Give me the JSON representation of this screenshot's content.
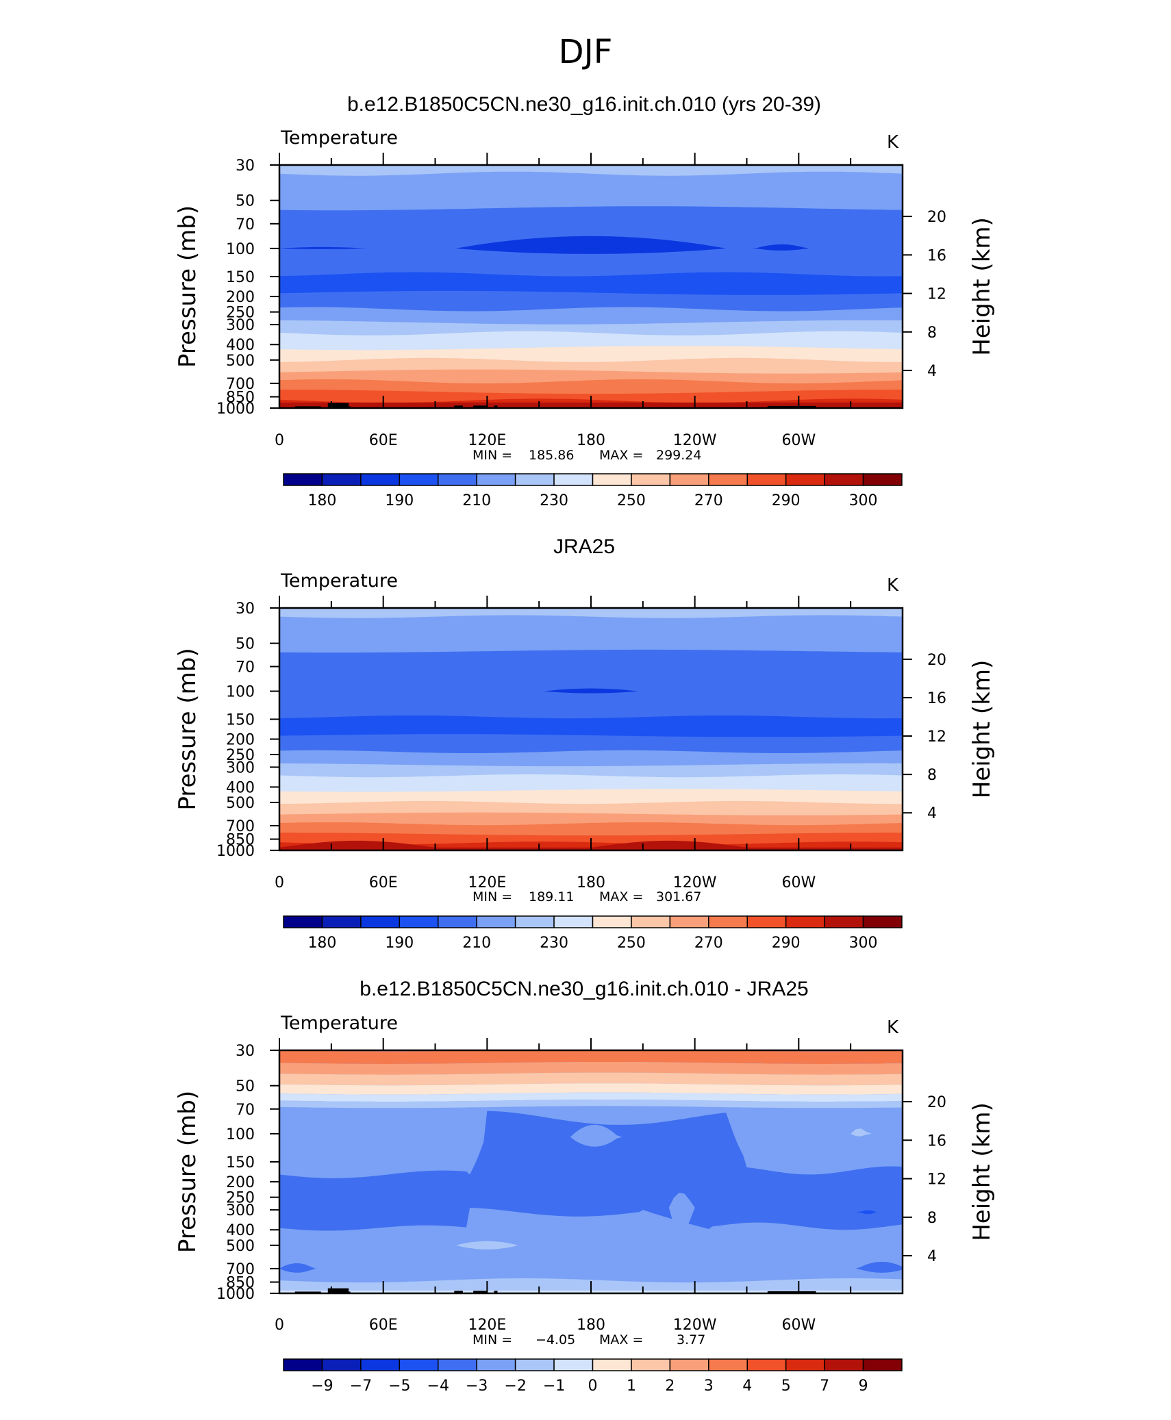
{
  "page_title": "DJF",
  "chart_data": [
    {
      "type": "heatmap",
      "title": "b.e12.B1850C5CN.ne30_g16.init.ch.010 (yrs 20-39)",
      "variable": "Temperature",
      "units": "K",
      "ylabel": "Pressure (mb)",
      "y2label": "Height (km)",
      "x_ticks": [
        "0",
        "60E",
        "120E",
        "180",
        "120W",
        "60W"
      ],
      "y_ticks": [
        "30",
        "50",
        "70",
        "100",
        "150",
        "200",
        "250",
        "300",
        "400",
        "500",
        "700",
        "850",
        "1000"
      ],
      "y2_ticks": [
        "4",
        "8",
        "12",
        "16",
        "20"
      ],
      "min_label": "MIN = ",
      "min": "185.86",
      "max_label": "MAX = ",
      "max": "299.24",
      "colorbar_labels": [
        "180",
        "190",
        "210",
        "230",
        "250",
        "270",
        "290",
        "300"
      ],
      "colors": [
        "#00008b",
        "#0a1fb8",
        "#0b37e0",
        "#1c52f2",
        "#3f6ff0",
        "#7aa1f5",
        "#aac6f8",
        "#d2e3fb",
        "#fde6d4",
        "#fcc6a8",
        "#f9a07a",
        "#f57a4e",
        "#f1522a",
        "#da2a10",
        "#b3120a",
        "#820005"
      ]
    },
    {
      "type": "heatmap",
      "title": "JRA25",
      "variable": "Temperature",
      "units": "K",
      "ylabel": "Pressure (mb)",
      "y2label": "Height (km)",
      "x_ticks": [
        "0",
        "60E",
        "120E",
        "180",
        "120W",
        "60W"
      ],
      "y_ticks": [
        "30",
        "50",
        "70",
        "100",
        "150",
        "200",
        "250",
        "300",
        "400",
        "500",
        "700",
        "850",
        "1000"
      ],
      "y2_ticks": [
        "4",
        "8",
        "12",
        "16",
        "20"
      ],
      "min_label": "MIN = ",
      "min": "189.11",
      "max_label": "MAX = ",
      "max": "301.67",
      "colorbar_labels": [
        "180",
        "190",
        "210",
        "230",
        "250",
        "270",
        "290",
        "300"
      ],
      "colors": [
        "#00008b",
        "#0a1fb8",
        "#0b37e0",
        "#1c52f2",
        "#3f6ff0",
        "#7aa1f5",
        "#aac6f8",
        "#d2e3fb",
        "#fde6d4",
        "#fcc6a8",
        "#f9a07a",
        "#f57a4e",
        "#f1522a",
        "#da2a10",
        "#b3120a",
        "#820005"
      ]
    },
    {
      "type": "heatmap",
      "title": "b.e12.B1850C5CN.ne30_g16.init.ch.010 - JRA25",
      "variable": "Temperature",
      "units": "K",
      "ylabel": "Pressure (mb)",
      "y2label": "Height (km)",
      "x_ticks": [
        "0",
        "60E",
        "120E",
        "180",
        "120W",
        "60W"
      ],
      "y_ticks": [
        "30",
        "50",
        "70",
        "100",
        "150",
        "200",
        "250",
        "300",
        "400",
        "500",
        "700",
        "850",
        "1000"
      ],
      "y2_ticks": [
        "4",
        "8",
        "12",
        "16",
        "20"
      ],
      "min_label": "MIN = ",
      "min": "−4.05",
      "max_label": "MAX = ",
      "max": "3.77",
      "colorbar_labels": [
        "−9",
        "−7",
        "−5",
        "−4",
        "−3",
        "−2",
        "−1",
        "0",
        "1",
        "2",
        "3",
        "4",
        "5",
        "7",
        "9"
      ],
      "colors": [
        "#00008b",
        "#0a1fb8",
        "#0b37e0",
        "#1c52f2",
        "#3f6ff0",
        "#7aa1f5",
        "#aac6f8",
        "#d2e3fb",
        "#fde6d4",
        "#fcc6a8",
        "#f9a07a",
        "#f57a4e",
        "#f1522a",
        "#da2a10",
        "#b3120a",
        "#820005"
      ]
    }
  ]
}
